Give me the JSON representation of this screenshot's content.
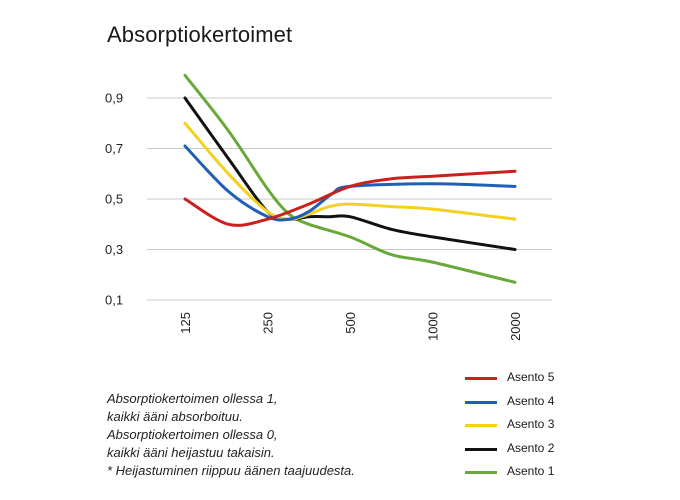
{
  "chart_data": {
    "type": "line",
    "title": "Absorptiokertoimet",
    "xlabel": "",
    "ylabel": "",
    "categories": [
      "125",
      "250",
      "500",
      "1000",
      "2000"
    ],
    "y_ticks": [
      "0,9",
      "0,7",
      "0,5",
      "0,3",
      "0,1"
    ],
    "ylim": [
      0.1,
      0.9
    ],
    "grid": true,
    "legend_position": "bottom-right",
    "series": [
      {
        "name": "Asento 5",
        "color": "#c8211e",
        "x": [
          125,
          180,
          250,
          354,
          500,
          707,
          1000,
          2000
        ],
        "y": [
          0.5,
          0.4,
          0.42,
          0.48,
          0.55,
          0.58,
          0.59,
          0.61
        ]
      },
      {
        "name": "Asento 4",
        "color": "#1f5fb5",
        "x": [
          125,
          180,
          250,
          300,
          354,
          430,
          500,
          1000,
          2000
        ],
        "y": [
          0.71,
          0.53,
          0.43,
          0.42,
          0.45,
          0.52,
          0.55,
          0.56,
          0.55
        ]
      },
      {
        "name": "Asento 3",
        "color": "#f4d11f",
        "x": [
          125,
          180,
          250,
          300,
          354,
          420,
          500,
          707,
          1000,
          2000
        ],
        "y": [
          0.8,
          0.6,
          0.45,
          0.42,
          0.44,
          0.47,
          0.48,
          0.47,
          0.46,
          0.42
        ]
      },
      {
        "name": "Asento 2",
        "color": "#111111",
        "x": [
          125,
          180,
          250,
          300,
          354,
          420,
          500,
          707,
          1000,
          2000
        ],
        "y": [
          0.9,
          0.66,
          0.45,
          0.42,
          0.43,
          0.43,
          0.43,
          0.38,
          0.35,
          0.3
        ]
      },
      {
        "name": "Asento 1",
        "color": "#6aa83a",
        "x": [
          125,
          180,
          250,
          300,
          354,
          500,
          707,
          1000,
          2000
        ],
        "y": [
          0.99,
          0.77,
          0.54,
          0.44,
          0.4,
          0.35,
          0.28,
          0.25,
          0.17
        ]
      }
    ],
    "legend_order": [
      "Asento 5",
      "Asento 4",
      "Asento 3",
      "Asento 2",
      "Asento 1"
    ]
  },
  "note": [
    "Absorptiokertoimen ollessa 1,",
    "kaikki ääni absorboituu.",
    "Absorptiokertoimen ollessa 0,",
    "kaikki ääni heijastuu takaisin.",
    "* Heijastuminen riippuu äänen taajuudesta."
  ]
}
